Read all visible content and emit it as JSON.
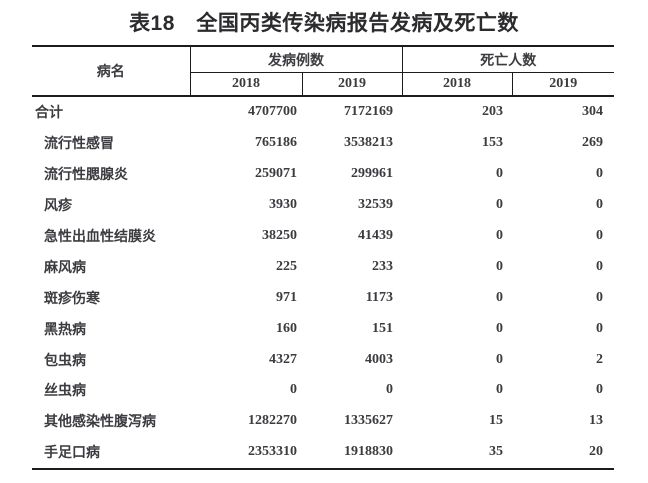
{
  "title": "表18　全国丙类传染病报告发病及死亡数",
  "colors": {
    "background": "#ffffff",
    "text": "#3b3b40",
    "title_text": "#2b2b2e",
    "border": "#1c1c1c"
  },
  "table": {
    "header": {
      "disease": "病名",
      "cases_group": "发病例数",
      "deaths_group": "死亡人数",
      "year_cols": [
        "2018",
        "2019",
        "2018",
        "2019"
      ]
    },
    "rows": [
      {
        "name": "合计",
        "cases_2018": "4707700",
        "cases_2019": "7172169",
        "deaths_2018": "203",
        "deaths_2019": "304"
      },
      {
        "name": "流行性感冒",
        "cases_2018": "765186",
        "cases_2019": "3538213",
        "deaths_2018": "153",
        "deaths_2019": "269"
      },
      {
        "name": "流行性腮腺炎",
        "cases_2018": "259071",
        "cases_2019": "299961",
        "deaths_2018": "0",
        "deaths_2019": "0"
      },
      {
        "name": "风疹",
        "cases_2018": "3930",
        "cases_2019": "32539",
        "deaths_2018": "0",
        "deaths_2019": "0"
      },
      {
        "name": "急性出血性结膜炎",
        "cases_2018": "38250",
        "cases_2019": "41439",
        "deaths_2018": "0",
        "deaths_2019": "0"
      },
      {
        "name": "麻风病",
        "cases_2018": "225",
        "cases_2019": "233",
        "deaths_2018": "0",
        "deaths_2019": "0"
      },
      {
        "name": "斑疹伤寒",
        "cases_2018": "971",
        "cases_2019": "1173",
        "deaths_2018": "0",
        "deaths_2019": "0"
      },
      {
        "name": "黑热病",
        "cases_2018": "160",
        "cases_2019": "151",
        "deaths_2018": "0",
        "deaths_2019": "0"
      },
      {
        "name": "包虫病",
        "cases_2018": "4327",
        "cases_2019": "4003",
        "deaths_2018": "0",
        "deaths_2019": "2"
      },
      {
        "name": "丝虫病",
        "cases_2018": "0",
        "cases_2019": "0",
        "deaths_2018": "0",
        "deaths_2019": "0"
      },
      {
        "name": "其他感染性腹泻病",
        "cases_2018": "1282270",
        "cases_2019": "1335627",
        "deaths_2018": "15",
        "deaths_2019": "13"
      },
      {
        "name": "手足口病",
        "cases_2018": "2353310",
        "cases_2019": "1918830",
        "deaths_2018": "35",
        "deaths_2019": "20"
      }
    ]
  }
}
